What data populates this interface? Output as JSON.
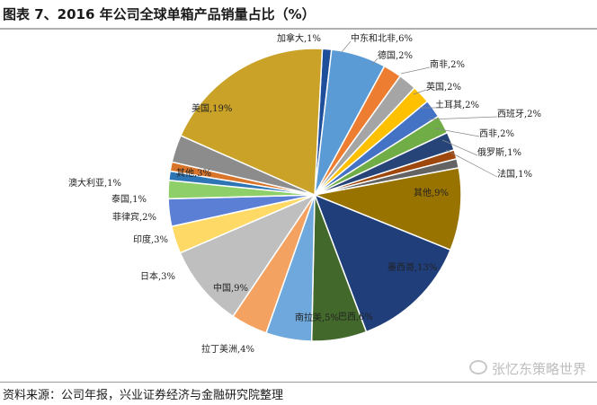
{
  "title": "图表 7、2016 年公司全球单箱产品销量占比（%）",
  "source": "资料来源：公司年报，兴业证券经济与金融研究院整理",
  "watermark": "张忆东策略世界",
  "chart_data": {
    "type": "pie",
    "title": "图表 7、2016 年公司全球单箱产品销量占比（%）",
    "slices": [
      {
        "label": "加拿大",
        "value": 1,
        "text": "加拿大,1%",
        "color": "#1f4e9a"
      },
      {
        "label": "中东和北非",
        "value": 6,
        "text": "中东和北非,6%",
        "color": "#5b9bd5"
      },
      {
        "label": "德国",
        "value": 2,
        "text": "德国,2%",
        "color": "#ed7d31"
      },
      {
        "label": "南非",
        "value": 2,
        "text": "南非,2%",
        "color": "#a5a5a5"
      },
      {
        "label": "英国",
        "value": 2,
        "text": "英国,2%",
        "color": "#ffc000"
      },
      {
        "label": "土耳其",
        "value": 2,
        "text": "土耳其,2%",
        "color": "#4472c4"
      },
      {
        "label": "西班牙",
        "value": 2,
        "text": "西班牙,2%",
        "color": "#70ad47"
      },
      {
        "label": "西非",
        "value": 2,
        "text": "西非,2%",
        "color": "#264478"
      },
      {
        "label": "俄罗斯",
        "value": 1,
        "text": "俄罗斯,1%",
        "color": "#9e480e"
      },
      {
        "label": "法国",
        "value": 1,
        "text": "法国,1%",
        "color": "#636363"
      },
      {
        "label": "其他",
        "value": 9,
        "text": "其他,9%",
        "color": "#997300"
      },
      {
        "label": "墨西哥",
        "value": 13,
        "text": "墨西哥,13%",
        "color": "#1f3e7a"
      },
      {
        "label": "巴西",
        "value": 6,
        "text": "巴西,6%",
        "color": "#43682b"
      },
      {
        "label": "南拉美",
        "value": 5,
        "text": "南拉美,5%",
        "color": "#6fa8dc"
      },
      {
        "label": "拉丁美洲",
        "value": 4,
        "text": "拉丁美洲,4%",
        "color": "#f4a261"
      },
      {
        "label": "中国",
        "value": 9,
        "text": "中国,9%",
        "color": "#bfbfbf"
      },
      {
        "label": "日本",
        "value": 3,
        "text": "日本,3%",
        "color": "#ffd966"
      },
      {
        "label": "印度",
        "value": 3,
        "text": "印度,3%",
        "color": "#5b7fd5"
      },
      {
        "label": "菲律宾",
        "value": 2,
        "text": "菲律宾,2%",
        "color": "#8fcf6a"
      },
      {
        "label": "泰国",
        "value": 1,
        "text": "泰国,1%",
        "color": "#2e75b6"
      },
      {
        "label": "澳大利亚",
        "value": 1,
        "text": "澳大利亚,1%",
        "color": "#d9742b"
      },
      {
        "label": "其他",
        "value": 3,
        "text": "其他,3%",
        "color": "#8c8c8c"
      },
      {
        "label": "美国",
        "value": 19,
        "text": "美国,19%",
        "color": "#c9a227"
      }
    ]
  }
}
